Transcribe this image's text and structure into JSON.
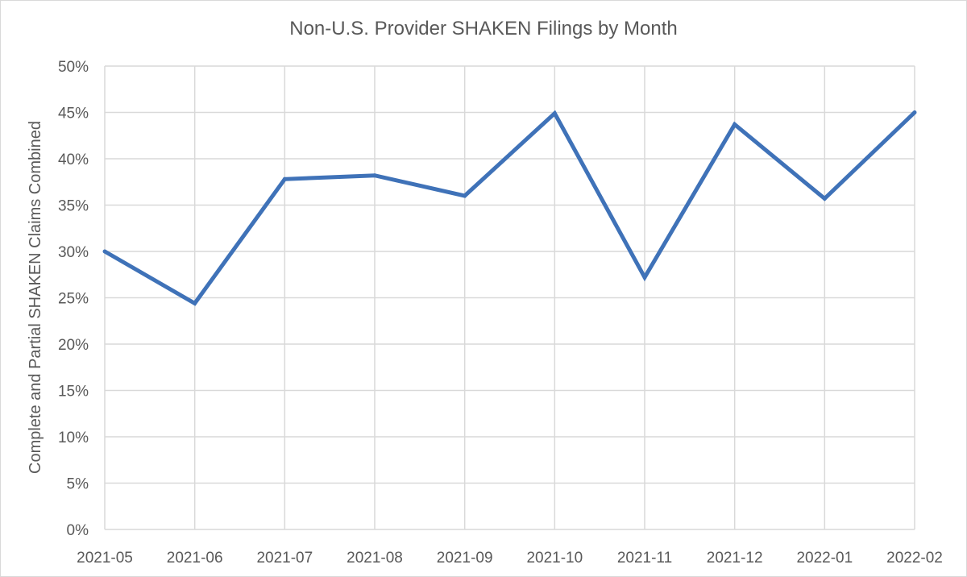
{
  "chart_data": {
    "type": "line",
    "title": "Non-U.S. Provider SHAKEN Filings by Month",
    "xlabel": "",
    "ylabel": "Complete and Partial SHAKEN Claims Combined",
    "categories": [
      "2021-05",
      "2021-06",
      "2021-07",
      "2021-08",
      "2021-09",
      "2021-10",
      "2021-11",
      "2021-12",
      "2022-01",
      "2022-02"
    ],
    "series": [
      {
        "values": [
          30.0,
          24.4,
          37.8,
          38.2,
          36.0,
          44.9,
          27.2,
          43.7,
          35.7,
          45.0
        ],
        "color": "#3f72b8"
      }
    ],
    "ylim": [
      0,
      50
    ],
    "yticks": [
      0,
      5,
      10,
      15,
      20,
      25,
      30,
      35,
      40,
      45,
      50
    ],
    "yticks_suffix": "%",
    "grid": {
      "horizontal": true,
      "vertical": true
    },
    "legend": "none"
  }
}
